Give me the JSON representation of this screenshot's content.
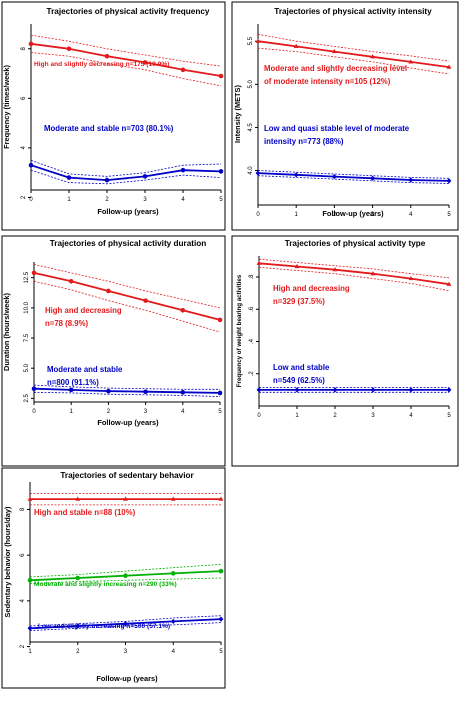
{
  "chart_data": [
    {
      "type": "line",
      "title": "Trajectories of physical activity frequency",
      "xlabel": "Follow-up (years)",
      "ylabel": "Frequency (times/week)",
      "xlim": [
        0,
        5
      ],
      "ylim": [
        2.3,
        9.0
      ],
      "x_ticks": [
        0,
        1,
        2,
        3,
        4,
        5
      ],
      "y_ticks": [
        2,
        4,
        6,
        8
      ],
      "grid": false,
      "series": [
        {
          "label": "High and slightly decreasing n=175 (19.9%)",
          "color": "#e31a1c",
          "marker": "circle",
          "x": [
            0,
            1,
            2,
            3,
            4,
            5
          ],
          "values": [
            8.2,
            8.0,
            7.7,
            7.45,
            7.15,
            6.9
          ],
          "ci_upper": [
            8.55,
            8.3,
            8.0,
            7.75,
            7.5,
            7.3
          ],
          "ci_lower": [
            7.85,
            7.7,
            7.4,
            7.15,
            6.8,
            6.5
          ]
        },
        {
          "label": "Moderate and stable n=703 (80.1%)",
          "color": "#0000c8",
          "marker": "circle",
          "x": [
            0,
            1,
            2,
            3,
            4,
            5
          ],
          "values": [
            3.3,
            2.8,
            2.7,
            2.85,
            3.1,
            3.05
          ],
          "ci_upper": [
            3.5,
            2.95,
            2.85,
            3.0,
            3.3,
            3.35
          ],
          "ci_lower": [
            3.1,
            2.6,
            2.55,
            2.7,
            2.9,
            2.8
          ]
        }
      ]
    },
    {
      "type": "line",
      "title": "Trajectories of physical activity intensity",
      "xlabel": "Follow-up (years)",
      "ylabel": "Intensity (METS)",
      "xlim": [
        0,
        5
      ],
      "ylim": [
        3.6,
        5.7
      ],
      "x_ticks": [
        0,
        1,
        2,
        3,
        4,
        5
      ],
      "y_ticks": [
        4.0,
        4.5,
        5.0,
        5.5
      ],
      "y_tick_labels": [
        "4.0",
        "4.5",
        "5.0",
        "5.5"
      ],
      "grid": false,
      "series": [
        {
          "label": "Moderate and slightly decreasing level of moderate intensity n=105 (12%)",
          "label_lines": [
            "Moderate and slightly decreasing level",
            "of moderate intensity n=105 (12%)"
          ],
          "color": "#e31a1c",
          "marker": "triangle",
          "x": [
            0,
            1,
            2,
            3,
            4,
            5
          ],
          "values": [
            5.5,
            5.44,
            5.38,
            5.32,
            5.26,
            5.2
          ],
          "ci_upper": [
            5.58,
            5.5,
            5.44,
            5.38,
            5.33,
            5.27
          ],
          "ci_lower": [
            5.42,
            5.38,
            5.32,
            5.26,
            5.19,
            5.12
          ]
        },
        {
          "label": "Low and quasi stable level of moderate intensity n=773 (88%)",
          "label_lines": [
            "Low and quasi stable level of moderate",
            "intensity n=773 (88%)"
          ],
          "color": "#0000c8",
          "marker": "diamond",
          "x": [
            0,
            1,
            2,
            3,
            4,
            5
          ],
          "values": [
            3.97,
            3.95,
            3.93,
            3.91,
            3.89,
            3.88
          ],
          "ci_upper": [
            4.0,
            3.98,
            3.96,
            3.94,
            3.92,
            3.91
          ],
          "ci_lower": [
            3.94,
            3.92,
            3.9,
            3.88,
            3.86,
            3.85
          ]
        }
      ]
    },
    {
      "type": "line",
      "title": "Trajectories of physical activity duration",
      "xlabel": "Follow-up (years)",
      "ylabel": "Duration (hours/week)",
      "xlim": [
        0,
        5
      ],
      "ylim": [
        2.2,
        13.8
      ],
      "x_ticks": [
        0,
        1,
        2,
        3,
        4,
        5
      ],
      "y_ticks": [
        2.5,
        5.0,
        7.5,
        10.0,
        12.5
      ],
      "y_tick_labels": [
        "2.5",
        "5.0",
        "7.5",
        "10.0",
        "12.5"
      ],
      "grid": false,
      "series": [
        {
          "label": "High and decreasing n=78 (8.9%)",
          "label_lines": [
            "High and decreasing",
            "n=78 (8.9%)"
          ],
          "color": "#e31a1c",
          "marker": "circle",
          "x": [
            0,
            1,
            2,
            3,
            4,
            5
          ],
          "values": [
            12.9,
            12.2,
            11.4,
            10.6,
            9.8,
            9.0
          ],
          "ci_upper": [
            13.6,
            12.9,
            12.2,
            11.4,
            10.7,
            10.0
          ],
          "ci_lower": [
            12.2,
            11.5,
            10.6,
            9.8,
            8.9,
            8.0
          ]
        },
        {
          "label": "Moderate and stable n=800 (91.1%)",
          "label_lines": [
            "Moderate and stable",
            "n=800 (91.1%)"
          ],
          "color": "#0000c8",
          "marker": "circle",
          "x": [
            0,
            1,
            2,
            3,
            4,
            5
          ],
          "values": [
            3.3,
            3.2,
            3.1,
            3.05,
            3.0,
            2.95
          ],
          "ci_upper": [
            3.6,
            3.45,
            3.35,
            3.3,
            3.25,
            3.25
          ],
          "ci_lower": [
            3.0,
            2.95,
            2.85,
            2.8,
            2.75,
            2.65
          ]
        }
      ]
    },
    {
      "type": "line",
      "title": "Trajectories of physical activity type",
      "xlabel": "",
      "ylabel": "Frequency of weight bearing activities",
      "xlim": [
        0,
        5
      ],
      "ylim": [
        0.0,
        0.93
      ],
      "x_ticks": [
        0,
        1,
        2,
        3,
        4,
        5
      ],
      "y_ticks": [
        0.2,
        0.4,
        0.6,
        0.8
      ],
      "y_tick_labels": [
        ".2",
        ".4",
        ".6",
        ".8"
      ],
      "grid": false,
      "series": [
        {
          "label": "High and decreasing n=329 (37.5%)",
          "label_lines": [
            "High and decreasing",
            "n=329 (37.5%)"
          ],
          "color": "#e31a1c",
          "marker": "triangle",
          "x": [
            0,
            1,
            2,
            3,
            4,
            5
          ],
          "values": [
            0.885,
            0.865,
            0.845,
            0.82,
            0.79,
            0.755
          ],
          "ci_upper": [
            0.91,
            0.89,
            0.87,
            0.85,
            0.82,
            0.795
          ],
          "ci_lower": [
            0.86,
            0.84,
            0.82,
            0.79,
            0.76,
            0.715
          ]
        },
        {
          "label": "Low and stable n=549 (62.5%)",
          "label_lines": [
            "Low and stable",
            "n=549 (62.5%)"
          ],
          "color": "#0000c8",
          "marker": "diamond",
          "x": [
            0,
            1,
            2,
            3,
            4,
            5
          ],
          "values": [
            0.1,
            0.1,
            0.1,
            0.1,
            0.1,
            0.1
          ],
          "ci_upper": [
            0.115,
            0.115,
            0.115,
            0.115,
            0.115,
            0.115
          ],
          "ci_lower": [
            0.085,
            0.085,
            0.085,
            0.085,
            0.085,
            0.085
          ]
        }
      ]
    },
    {
      "type": "line",
      "title": "Trajectories of sedentary behavior",
      "xlabel": "Follow-up (years)",
      "ylabel": "Sedentary behavior (hours/day)",
      "xlim": [
        1,
        5
      ],
      "ylim": [
        2.2,
        9.2
      ],
      "x_ticks": [
        1,
        2,
        3,
        4,
        5
      ],
      "y_ticks": [
        2,
        4,
        6,
        8
      ],
      "grid": false,
      "series": [
        {
          "label": "High and stable n=88 (10%)",
          "color": "#e31a1c",
          "marker": "triangle",
          "x": [
            1,
            2,
            3,
            4,
            5
          ],
          "values": [
            8.45,
            8.45,
            8.45,
            8.45,
            8.45
          ],
          "ci_upper": [
            8.7,
            8.7,
            8.7,
            8.7,
            8.7
          ],
          "ci_lower": [
            8.2,
            8.2,
            8.2,
            8.2,
            8.2
          ]
        },
        {
          "label": "Moderate and slightly increasing n=290 (33%)",
          "color": "#00b000",
          "marker": "circle",
          "x": [
            1,
            2,
            3,
            4,
            5
          ],
          "values": [
            4.9,
            5.0,
            5.1,
            5.2,
            5.3
          ],
          "ci_upper": [
            5.05,
            5.15,
            5.3,
            5.45,
            5.6
          ],
          "ci_lower": [
            4.75,
            4.85,
            4.9,
            4.95,
            5.0
          ]
        },
        {
          "label": "Low and slightly increasing n=500 (57.1%)",
          "color": "#0000c8",
          "marker": "diamond",
          "x": [
            1,
            2,
            3,
            4,
            5
          ],
          "values": [
            2.8,
            2.9,
            3.0,
            3.1,
            3.2
          ],
          "ci_upper": [
            2.9,
            3.0,
            3.1,
            3.25,
            3.35
          ],
          "ci_lower": [
            2.7,
            2.8,
            2.9,
            2.95,
            3.05
          ]
        }
      ]
    }
  ]
}
